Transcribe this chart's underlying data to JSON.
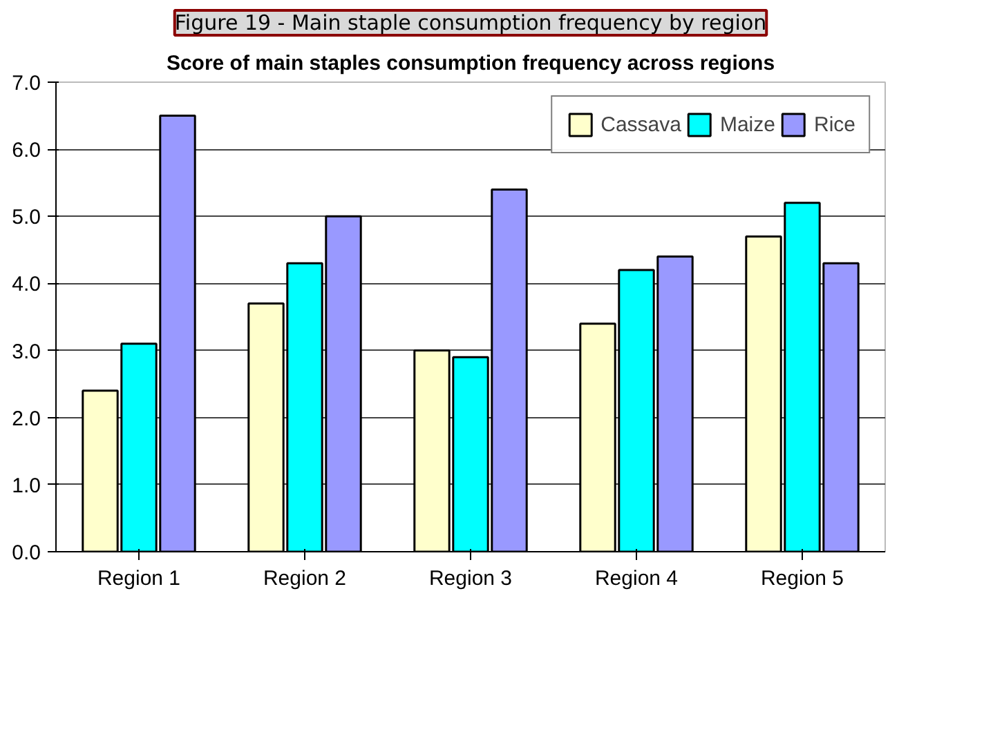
{
  "chart_data": {
    "type": "bar",
    "title": "Figure 19 - Main staple consumption frequency by region",
    "subtitle": "Score of main staples consumption frequency across regions",
    "categories": [
      "Region 1",
      "Region 2",
      "Region 3",
      "Region 4",
      "Region 5"
    ],
    "series": [
      {
        "name": "Cassava",
        "color": "#ffffcc",
        "values": [
          2.4,
          3.7,
          3.0,
          3.4,
          4.7
        ]
      },
      {
        "name": "Maize",
        "color": "#00ffff",
        "values": [
          3.1,
          4.3,
          2.9,
          4.2,
          5.2
        ]
      },
      {
        "name": "Rice",
        "color": "#9999ff",
        "values": [
          6.5,
          5.0,
          5.4,
          4.4,
          4.3
        ]
      }
    ],
    "ylim": [
      0,
      7
    ],
    "yticks": [
      {
        "value": 0,
        "label": "0.0"
      },
      {
        "value": 1,
        "label": "1.0"
      },
      {
        "value": 2,
        "label": "2.0"
      },
      {
        "value": 3,
        "label": "3.0"
      },
      {
        "value": 4,
        "label": "4.0"
      },
      {
        "value": 5,
        "label": "5.0"
      },
      {
        "value": 6,
        "label": "6.0"
      },
      {
        "value": 7,
        "label": "7.0"
      }
    ],
    "grid": "y",
    "legend": "top right"
  }
}
